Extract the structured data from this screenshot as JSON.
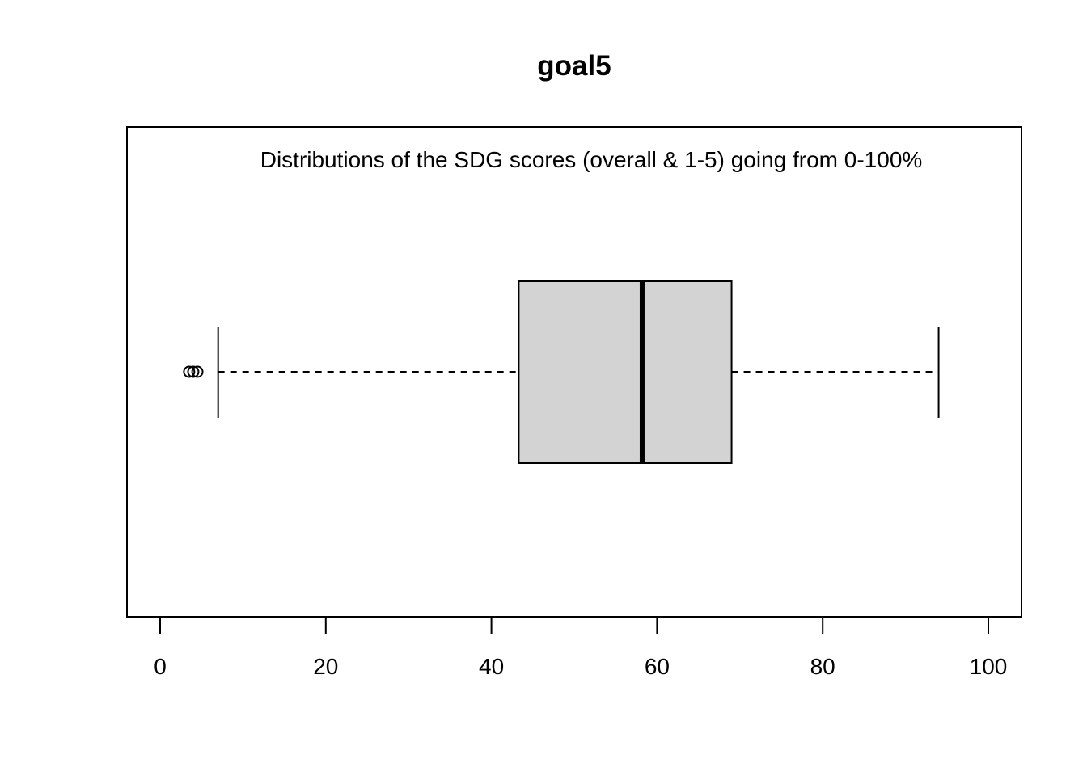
{
  "chart_data": {
    "type": "boxplot",
    "orientation": "horizontal",
    "title": "goal5",
    "subtitle": "Distributions of the SDG scores (overall & 1-5) going from 0-100%",
    "xlabel": "",
    "ylabel": "",
    "xlim": [
      0,
      100
    ],
    "x_ticks": [
      0,
      20,
      40,
      60,
      80,
      100
    ],
    "x_tick_labels": [
      "0",
      "20",
      "40",
      "60",
      "80",
      "100"
    ],
    "grid": false,
    "legend": "none",
    "box": {
      "whisker_low": 7.0,
      "q1": 43.3,
      "median": 58.2,
      "q3": 69.0,
      "whisker_high": 94.0,
      "outliers": [
        3.5,
        4.0,
        4.5
      ]
    },
    "colors": {
      "box_fill": "#d3d3d3",
      "stroke": "#000000",
      "background": "#ffffff"
    }
  }
}
